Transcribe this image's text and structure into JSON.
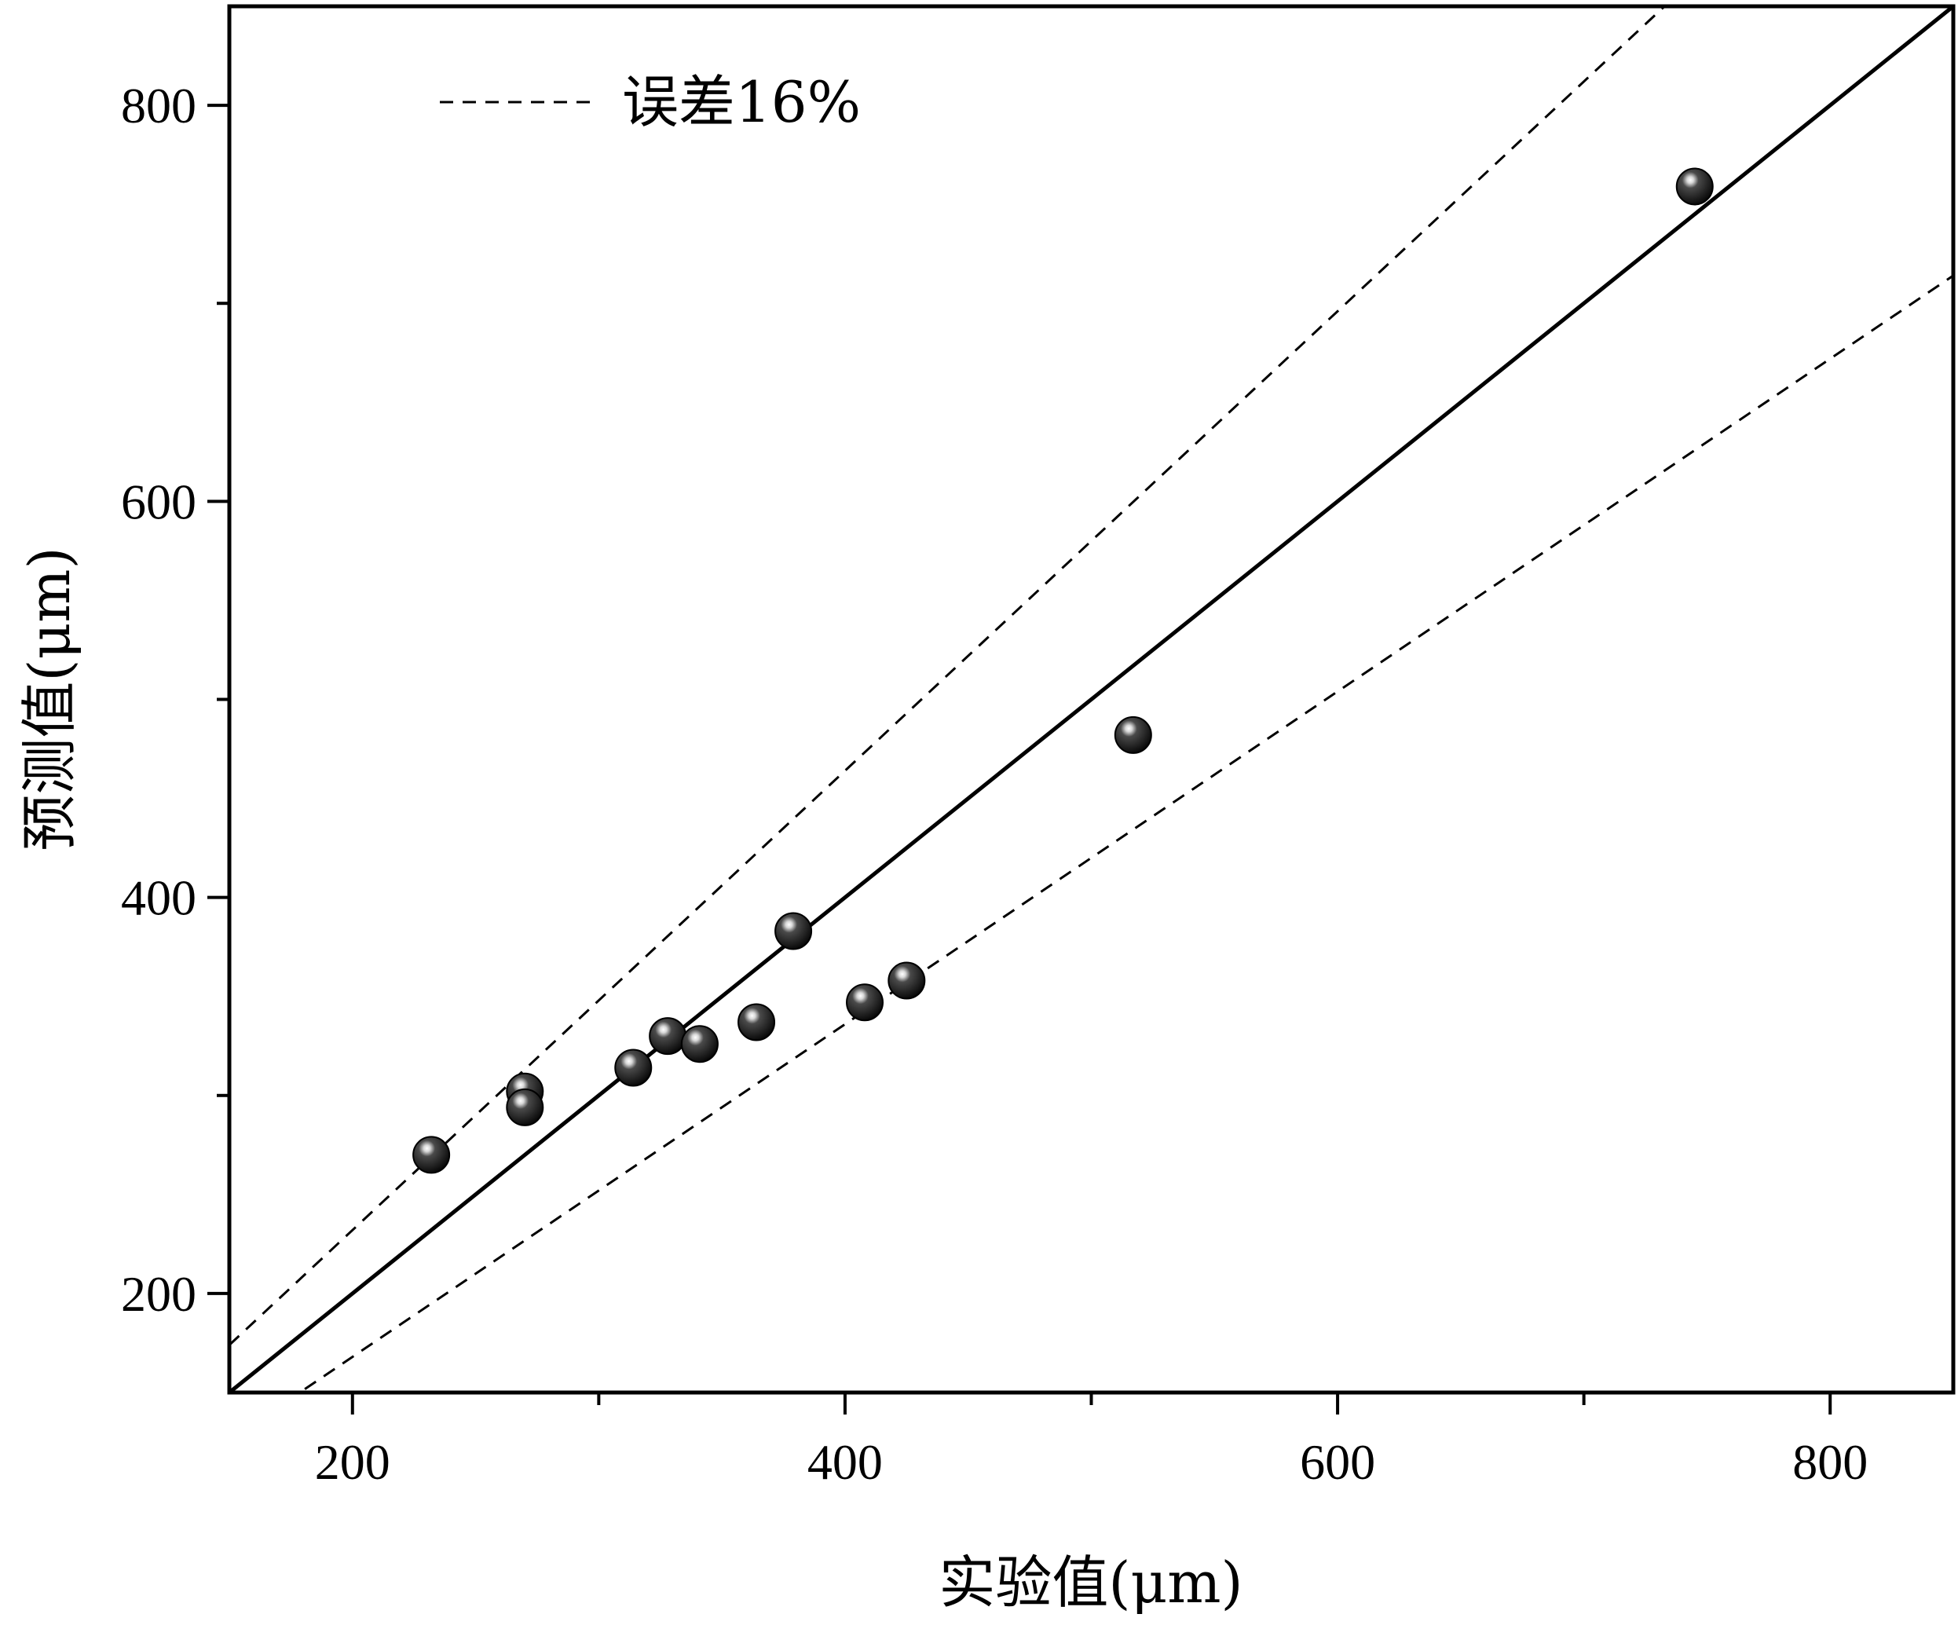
{
  "chart_data": {
    "type": "scatter",
    "xlabel": "实验值(μm)",
    "ylabel": "预测值(μm)",
    "xlim": [
      150,
      850
    ],
    "ylim": [
      150,
      850
    ],
    "x_ticks": [
      200,
      400,
      600,
      800
    ],
    "x_tick_labels": [
      "200",
      "400",
      "600",
      "800"
    ],
    "x_minor_ticks": [
      300,
      500,
      700
    ],
    "y_ticks": [
      200,
      400,
      600,
      800
    ],
    "y_tick_labels": [
      "200",
      "400",
      "600",
      "800"
    ],
    "y_minor_ticks": [
      300,
      500,
      700
    ],
    "grid": false,
    "legend": {
      "position": "top-left",
      "entries": [
        {
          "label": "误差16%",
          "style": "dashed"
        }
      ]
    },
    "reference_lines": [
      {
        "name": "y = x",
        "slope": 1.0,
        "style": "solid"
      },
      {
        "name": "+16%",
        "slope": 1.16,
        "style": "dashed"
      },
      {
        "name": "-16%",
        "slope": 0.84,
        "style": "dashed"
      }
    ],
    "points": [
      {
        "x": 232,
        "y": 270
      },
      {
        "x": 270,
        "y": 302
      },
      {
        "x": 270,
        "y": 294
      },
      {
        "x": 314,
        "y": 314
      },
      {
        "x": 328,
        "y": 330
      },
      {
        "x": 341,
        "y": 326
      },
      {
        "x": 364,
        "y": 337
      },
      {
        "x": 379,
        "y": 383
      },
      {
        "x": 408,
        "y": 347
      },
      {
        "x": 425,
        "y": 358
      },
      {
        "x": 517,
        "y": 482
      },
      {
        "x": 745,
        "y": 759
      }
    ],
    "marker_color": "#000000",
    "line_color": "#000000"
  }
}
